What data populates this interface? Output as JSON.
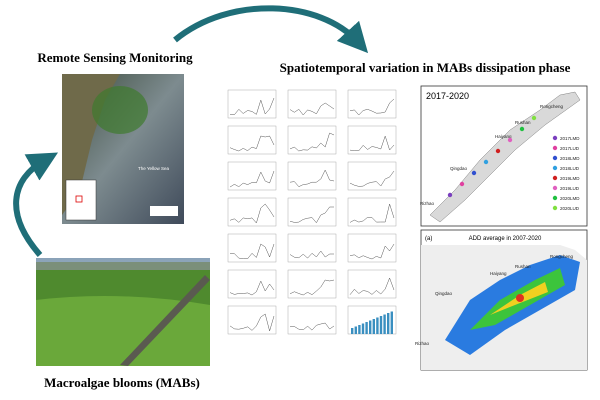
{
  "left_top": {
    "title": "Remote Sensing Monitoring",
    "sea_label": "The Yellow Sea"
  },
  "left_bottom": {
    "title": "Macroalgae blooms (MABs)"
  },
  "center": {
    "title": "Spatiotemporal variation in MABs dissipation phase"
  },
  "map_top": {
    "title": "2017-2020",
    "places": [
      "Rongcheng",
      "Rushan",
      "Haiyang",
      "Qingdao",
      "Rizhao"
    ],
    "legend": [
      "2017LMD",
      "2017LUD",
      "2018LMD",
      "2018LUD",
      "2019LMD",
      "2019LUD",
      "2020LMD",
      "2020LUD"
    ]
  },
  "map_bottom": {
    "label": "(a)",
    "title": "ADD average in 2007-2020",
    "places": [
      "Rongcheng",
      "Rushan",
      "Haiyang",
      "Qingdao",
      "Rizhao"
    ]
  }
}
